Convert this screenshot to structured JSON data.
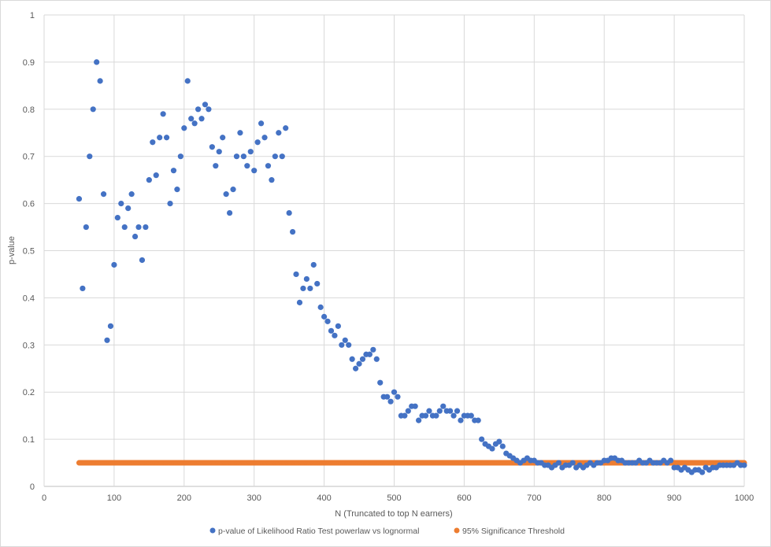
{
  "chart_data": {
    "type": "scatter",
    "title": "",
    "xlabel": "N (Truncated to top N earners)",
    "ylabel": "p-value",
    "xlim": [
      0,
      1000
    ],
    "ylim": [
      0,
      1
    ],
    "grid": true,
    "legend_position": "bottom",
    "x_ticks": [
      "0",
      "100",
      "200",
      "300",
      "400",
      "500",
      "600",
      "700",
      "800",
      "900",
      "1000"
    ],
    "y_ticks": [
      "0",
      "0.1",
      "0.2",
      "0.3",
      "0.4",
      "0.5",
      "0.6",
      "0.7",
      "0.8",
      "0.9",
      "1"
    ],
    "series": [
      {
        "name": "p-value of Likelihood Ratio Test powerlaw vs lognormal",
        "color": "#4472C4",
        "x_start": 50,
        "x_step": 5,
        "values": [
          0.61,
          0.42,
          0.55,
          0.7,
          0.8,
          0.9,
          0.86,
          0.62,
          0.31,
          0.34,
          0.47,
          0.57,
          0.6,
          0.55,
          0.59,
          0.62,
          0.53,
          0.55,
          0.48,
          0.55,
          0.65,
          0.73,
          0.66,
          0.74,
          0.79,
          0.74,
          0.6,
          0.67,
          0.63,
          0.7,
          0.76,
          0.86,
          0.78,
          0.77,
          0.8,
          0.78,
          0.81,
          0.8,
          0.72,
          0.68,
          0.71,
          0.74,
          0.62,
          0.58,
          0.63,
          0.7,
          0.75,
          0.7,
          0.68,
          0.71,
          0.67,
          0.73,
          0.77,
          0.74,
          0.68,
          0.65,
          0.7,
          0.75,
          0.7,
          0.76,
          0.58,
          0.54,
          0.45,
          0.39,
          0.42,
          0.44,
          0.42,
          0.47,
          0.43,
          0.38,
          0.36,
          0.35,
          0.33,
          0.32,
          0.34,
          0.3,
          0.31,
          0.3,
          0.27,
          0.25,
          0.26,
          0.27,
          0.28,
          0.28,
          0.29,
          0.27,
          0.22,
          0.19,
          0.19,
          0.18,
          0.2,
          0.19,
          0.15,
          0.15,
          0.16,
          0.17,
          0.17,
          0.14,
          0.15,
          0.15,
          0.16,
          0.15,
          0.15,
          0.16,
          0.17,
          0.16,
          0.16,
          0.15,
          0.16,
          0.14,
          0.15,
          0.15,
          0.15,
          0.14,
          0.14,
          0.1,
          0.09,
          0.085,
          0.08,
          0.09,
          0.095,
          0.085,
          0.07,
          0.065,
          0.06,
          0.055,
          0.05,
          0.055,
          0.06,
          0.055,
          0.055,
          0.05,
          0.05,
          0.045,
          0.045,
          0.04,
          0.045,
          0.05,
          0.04,
          0.045,
          0.045,
          0.05,
          0.04,
          0.045,
          0.04,
          0.045,
          0.05,
          0.045,
          0.05,
          0.05,
          0.055,
          0.055,
          0.06,
          0.06,
          0.055,
          0.055,
          0.05,
          0.05,
          0.05,
          0.05,
          0.055,
          0.05,
          0.05,
          0.055,
          0.05,
          0.05,
          0.05,
          0.055,
          0.05,
          0.055,
          0.04,
          0.04,
          0.035,
          0.04,
          0.035,
          0.03,
          0.035,
          0.035,
          0.03,
          0.04,
          0.035,
          0.04,
          0.04,
          0.045,
          0.045,
          0.045,
          0.045,
          0.045,
          0.05,
          0.045,
          0.045
        ]
      },
      {
        "name": "95% Significance Threshold",
        "color": "#ED7D31",
        "x_start": 50,
        "x_end": 1000,
        "x_step": 1,
        "constant_value": 0.05
      }
    ]
  }
}
